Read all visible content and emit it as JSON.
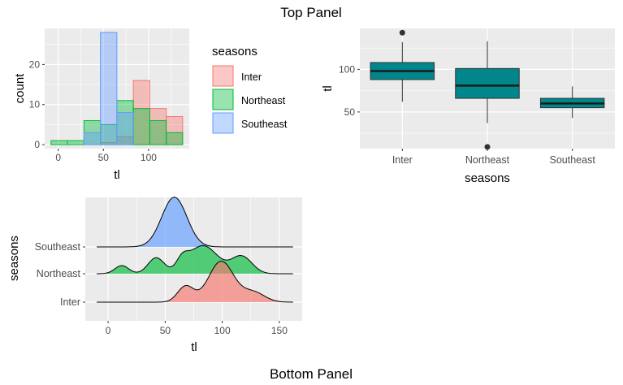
{
  "top_title": "Top Panel",
  "bottom_title": "Bottom Panel",
  "colors": {
    "inter": "#F8766D",
    "northeast": "#00BA38",
    "southeast": "#619CFF",
    "box_fill": "#00868B",
    "panel_bg": "#EBEBEB",
    "grid": "#FFFFFF"
  },
  "chart_data": [
    {
      "type": "bar",
      "subtype": "histogram-overlay",
      "xlabel": "tl",
      "ylabel": "count",
      "xlim": [
        -15,
        145
      ],
      "ylim": [
        -1,
        29
      ],
      "x_ticks": [
        0,
        50,
        100
      ],
      "y_ticks": [
        0,
        10,
        20
      ],
      "bin_width": 18.2,
      "legend_title": "seasons",
      "legend_position": "right",
      "series": [
        {
          "name": "Inter",
          "key": "inter",
          "bins": [
            {
              "x0": 46.7,
              "count": 0.5
            },
            {
              "x0": 64.9,
              "count": 2
            },
            {
              "x0": 83.1,
              "count": 16
            },
            {
              "x0": 101.3,
              "count": 9
            },
            {
              "x0": 119.5,
              "count": 7
            }
          ]
        },
        {
          "name": "Northeast",
          "key": "northeast",
          "bins": [
            {
              "x0": -8.0,
              "count": 1
            },
            {
              "x0": 10.2,
              "count": 1
            },
            {
              "x0": 28.5,
              "count": 6
            },
            {
              "x0": 46.7,
              "count": 5
            },
            {
              "x0": 64.9,
              "count": 11
            },
            {
              "x0": 83.1,
              "count": 9
            },
            {
              "x0": 101.3,
              "count": 6
            },
            {
              "x0": 119.5,
              "count": 3
            }
          ]
        },
        {
          "name": "Southeast",
          "key": "southeast",
          "bins": [
            {
              "x0": 28.5,
              "count": 3
            },
            {
              "x0": 46.7,
              "count": 28
            },
            {
              "x0": 64.9,
              "count": 8
            }
          ]
        }
      ]
    },
    {
      "type": "box",
      "xlabel": "seasons",
      "ylabel": "tl",
      "categories": [
        "Inter",
        "Northeast",
        "Southeast"
      ],
      "ylim": [
        7,
        148
      ],
      "y_ticks": [
        50,
        100
      ],
      "boxes": [
        {
          "min": 62,
          "q1": 88,
          "median": 98,
          "q3": 108,
          "max": 132,
          "outliers": [
            143
          ]
        },
        {
          "min": 37,
          "q1": 66,
          "median": 81,
          "q3": 101,
          "max": 133,
          "outliers": [
            9
          ]
        },
        {
          "min": 43,
          "q1": 55,
          "median": 60,
          "q3": 66,
          "max": 80,
          "outliers": []
        }
      ]
    },
    {
      "type": "area",
      "subtype": "ridgeline",
      "xlabel": "tl",
      "ylabel": "seasons",
      "xlim": [
        -20,
        170
      ],
      "x_ticks": [
        0,
        50,
        100,
        150
      ],
      "range": [
        -10,
        162
      ],
      "ridges": [
        {
          "name": "Southeast",
          "key": "southeast",
          "peaks": [
            [
              58,
              11,
              1.0
            ]
          ]
        },
        {
          "name": "Northeast",
          "key": "northeast",
          "peaks": [
            [
              12,
              6,
              0.18
            ],
            [
              42,
              7,
              0.35
            ],
            [
              65,
              5,
              0.22
            ],
            [
              83,
              13,
              0.62
            ],
            [
              117,
              9,
              0.38
            ]
          ]
        },
        {
          "name": "Inter",
          "key": "inter",
          "peaks": [
            [
              68,
              7,
              0.35
            ],
            [
              99,
              11,
              0.9
            ],
            [
              127,
              10,
              0.22
            ]
          ]
        }
      ]
    }
  ]
}
